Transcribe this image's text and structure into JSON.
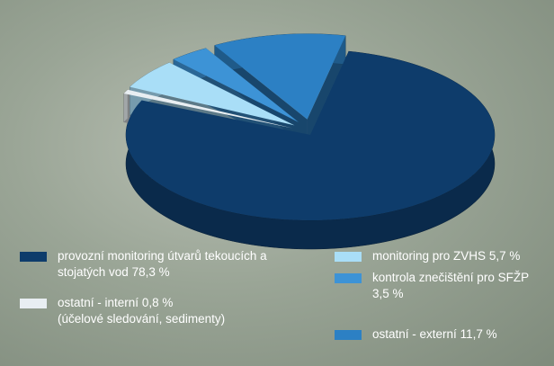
{
  "chart_data": {
    "type": "pie3d",
    "categories": [
      "provozní monitoring útvarů tekoucích a stojatých vod",
      "ostatní - interní",
      "monitoring pro ZVHS",
      "kontrola znečištění pro SFŽP",
      "ostatní - externí"
    ],
    "values": [
      78.3,
      0.8,
      5.7,
      3.5,
      11.7
    ],
    "value_labels": [
      "78,3 %",
      "0,8 %",
      "5,7 %",
      "3,5 %",
      "11,7 %"
    ],
    "colors": [
      "#0e3c6b",
      "#e8eef2",
      "#a9def7",
      "#3d93d6",
      "#2c80c4"
    ],
    "annotations": [
      "(účelové sledování, sedimenty)"
    ]
  }
}
